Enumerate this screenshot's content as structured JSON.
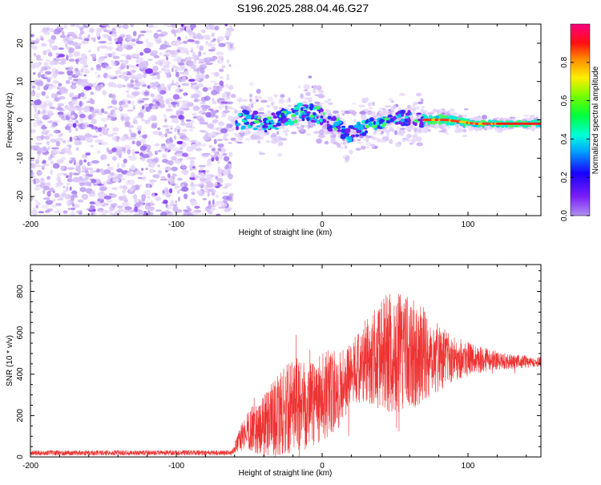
{
  "title": "S196.2025.288.04.46.G27",
  "chart_data": [
    {
      "type": "heatmap",
      "name": "spectrogram",
      "xlabel": "Height of straight line (km)",
      "ylabel": "Frequency (Hz)",
      "xlim": [
        -200,
        150
      ],
      "ylim": [
        -25,
        25
      ],
      "xticks": [
        -200,
        -100,
        0,
        100
      ],
      "yticks": [
        -20,
        -10,
        0,
        10,
        20
      ],
      "colorbar": {
        "label": "Normalized spectral amplitude",
        "range": [
          0,
          1
        ],
        "ticks": [
          "0.0",
          "0.2",
          "0.4",
          "0.6",
          "0.8"
        ],
        "colormap": "rainbow (purple-blue-cyan-green-yellow-red-magenta)"
      },
      "features": {
        "noise_region": [
          -200,
          -62
        ],
        "signal_track_freq_hz": [
          [
            -62,
            -1.5
          ],
          [
            -50,
            0.5
          ],
          [
            -40,
            -1
          ],
          [
            -30,
            0
          ],
          [
            -20,
            1.5
          ],
          [
            -10,
            2
          ],
          [
            0,
            1
          ],
          [
            5,
            -1
          ],
          [
            10,
            -1.5
          ],
          [
            18,
            -4
          ],
          [
            25,
            -2.5
          ],
          [
            35,
            -1
          ],
          [
            45,
            0
          ],
          [
            55,
            0.5
          ],
          [
            65,
            0
          ],
          [
            75,
            0
          ],
          [
            85,
            0
          ],
          [
            95,
            -0.5
          ],
          [
            105,
            -1
          ],
          [
            115,
            -1
          ],
          [
            125,
            -1
          ],
          [
            135,
            -1
          ],
          [
            150,
            -1
          ]
        ]
      }
    },
    {
      "type": "line",
      "name": "snr",
      "xlabel": "Height of straight line (km)",
      "ylabel": "SNR (10 * v/v)",
      "xlim": [
        -200,
        150
      ],
      "ylim": [
        0,
        930
      ],
      "xticks": [
        -200,
        -100,
        0,
        100
      ],
      "yticks": [
        0,
        200,
        400,
        600,
        800
      ],
      "color": "#ee3333",
      "envelope_km_snr": [
        [
          -200,
          20
        ],
        [
          -62,
          20
        ],
        [
          -52,
          130
        ],
        [
          -40,
          150
        ],
        [
          -30,
          200
        ],
        [
          -20,
          250
        ],
        [
          -10,
          280
        ],
        [
          0,
          290
        ],
        [
          10,
          310
        ],
        [
          20,
          400
        ],
        [
          30,
          470
        ],
        [
          45,
          500
        ],
        [
          60,
          500
        ],
        [
          75,
          490
        ],
        [
          90,
          480
        ],
        [
          110,
          470
        ],
        [
          130,
          460
        ],
        [
          150,
          460
        ]
      ],
      "spread_km_snr": [
        [
          -200,
          12
        ],
        [
          -62,
          12
        ],
        [
          -52,
          90
        ],
        [
          -40,
          150
        ],
        [
          -30,
          200
        ],
        [
          -20,
          230
        ],
        [
          -10,
          240
        ],
        [
          0,
          230
        ],
        [
          10,
          200
        ],
        [
          20,
          150
        ],
        [
          30,
          200
        ],
        [
          45,
          300
        ],
        [
          60,
          280
        ],
        [
          75,
          200
        ],
        [
          90,
          110
        ],
        [
          110,
          60
        ],
        [
          130,
          35
        ],
        [
          150,
          25
        ]
      ]
    }
  ]
}
